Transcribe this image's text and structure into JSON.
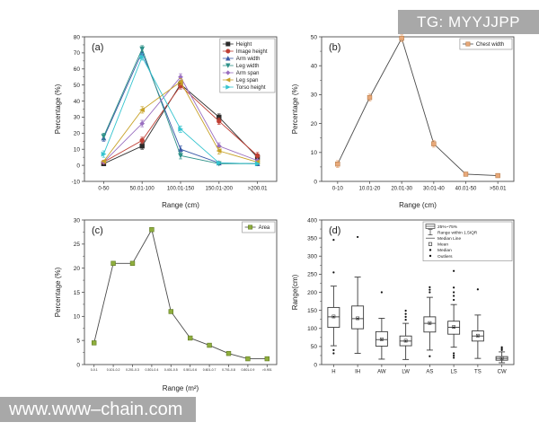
{
  "overlays": {
    "telegram_badge": "TG: MYYJJPP",
    "website_badge": "www.www–chain.com"
  },
  "colors": {
    "badge_bg": "#a8a8a8",
    "axis": "#4d4d4d",
    "text": "#222222"
  },
  "chart_data": [
    {
      "id": "a",
      "type": "line",
      "panel_label": "(a)",
      "xlabel": "Range (cm)",
      "ylabel": "Percentage (%)",
      "ylim": [
        -10,
        80
      ],
      "ytick": 10,
      "legend_position": "top-right",
      "categories": [
        "0-50",
        "50.01-100",
        "100.01-150",
        "150.01-200",
        ">200.01"
      ],
      "series": [
        {
          "name": "Height",
          "color": "#2b2b2b",
          "marker": "square",
          "err": 2,
          "values": [
            1,
            12,
            50.5,
            30,
            5
          ]
        },
        {
          "name": "Image height",
          "color": "#bf3f34",
          "marker": "circle",
          "err": 2,
          "values": [
            2,
            15.5,
            49.5,
            27.5,
            6
          ]
        },
        {
          "name": "Arm width",
          "color": "#3c5ba8",
          "marker": "triangle-up",
          "err": 2,
          "values": [
            17,
            70.5,
            10,
            1.5,
            1
          ]
        },
        {
          "name": "Leg width",
          "color": "#2e9188",
          "marker": "triangle-down",
          "err": 2,
          "values": [
            18,
            72.5,
            6,
            1,
            1
          ]
        },
        {
          "name": "Arm span",
          "color": "#9a6fc0",
          "marker": "diamond",
          "err": 2,
          "values": [
            2,
            26,
            55,
            12,
            3
          ]
        },
        {
          "name": "Leg span",
          "color": "#c8a227",
          "marker": "triangle-left",
          "err": 2,
          "values": [
            2.5,
            34.5,
            52,
            9,
            2
          ]
        },
        {
          "name": "Torso height",
          "color": "#35c4cf",
          "marker": "triangle-right",
          "err": 2,
          "values": [
            7,
            67.5,
            22.5,
            1.5,
            1
          ]
        }
      ]
    },
    {
      "id": "b",
      "type": "line",
      "panel_label": "(b)",
      "xlabel": "Range (cm)",
      "ylabel": "Percentage (%)",
      "ylim": [
        0,
        50
      ],
      "ytick": 10,
      "legend_position": "top-right",
      "categories": [
        "0-10",
        "10.01-20",
        "20.01-30",
        "30.01-40",
        "40.01-50",
        ">50.01"
      ],
      "series": [
        {
          "name": "Chest width",
          "color": "#e8a97a",
          "edge": "#b97a45",
          "line_color": "#4a4a4a",
          "marker": "square",
          "err": 1.2,
          "values": [
            6,
            29,
            49.5,
            13,
            2.5,
            2
          ]
        }
      ]
    },
    {
      "id": "c",
      "type": "line",
      "panel_label": "(c)",
      "xlabel": "Range (m²)",
      "ylabel": "Percentage (%)",
      "ylim": [
        0,
        30
      ],
      "ytick": 5,
      "legend_position": "top-right",
      "categories": [
        "0-0.1",
        "0.101-0.2",
        "0.201-0.3",
        "0.301-0.4",
        "0.401-0.5",
        "0.501-0.6",
        "0.601-0.7",
        "0.701-0.8",
        "0.801-0.9",
        ">0.901"
      ],
      "series": [
        {
          "name": "Area",
          "color": "#8fae3e",
          "edge": "#5f7a22",
          "line_color": "#4a4a4a",
          "marker": "square",
          "values": [
            4.5,
            21,
            21,
            28,
            11,
            5.5,
            4,
            2.3,
            1.2,
            1.2
          ]
        }
      ]
    },
    {
      "id": "d",
      "type": "box",
      "panel_label": "(d)",
      "xlabel": "",
      "ylabel": "Range(cm)",
      "ylim": [
        0,
        400
      ],
      "ytick": 50,
      "categories": [
        "H",
        "IH",
        "AW",
        "LW",
        "AS",
        "LS",
        "TS",
        "CW"
      ],
      "boxes": [
        {
          "cat": "H",
          "low": 52,
          "q1": 103,
          "median": 132,
          "mean": 133,
          "q3": 158,
          "high": 217,
          "outliers": [
            31,
            40,
            255,
            345
          ]
        },
        {
          "cat": "IH",
          "low": 31,
          "q1": 99,
          "median": 127,
          "mean": 128,
          "q3": 162,
          "high": 242,
          "outliers": [
            353
          ]
        },
        {
          "cat": "AW",
          "low": 15,
          "q1": 51,
          "median": 69,
          "mean": 70,
          "q3": 91,
          "high": 128,
          "outliers": [
            200
          ]
        },
        {
          "cat": "LW",
          "low": 14,
          "q1": 52,
          "median": 65,
          "mean": 66,
          "q3": 79,
          "high": 114,
          "outliers": [
            124,
            132,
            140,
            149
          ]
        },
        {
          "cat": "AS",
          "low": 40,
          "q1": 90,
          "median": 114,
          "mean": 115,
          "q3": 132,
          "high": 186,
          "outliers": [
            23,
            200,
            207,
            214,
            293
          ]
        },
        {
          "cat": "LS",
          "low": 48,
          "q1": 84,
          "median": 103,
          "mean": 104,
          "q3": 120,
          "high": 166,
          "outliers": [
            19,
            25,
            31,
            179,
            190,
            200,
            213,
            259
          ]
        },
        {
          "cat": "TS",
          "low": 17,
          "q1": 65,
          "median": 79,
          "mean": 80,
          "q3": 93,
          "high": 137,
          "outliers": [
            208
          ]
        },
        {
          "cat": "CW",
          "low": 5,
          "q1": 12,
          "median": 17,
          "mean": 18,
          "q3": 22,
          "high": 35,
          "outliers": [
            40,
            44,
            48
          ]
        }
      ],
      "legend_items": [
        {
          "glyph": "box",
          "label": "25%~75%"
        },
        {
          "glyph": "whisker",
          "label": "Range within 1.5IQR"
        },
        {
          "glyph": "line",
          "label": "Median Line"
        },
        {
          "glyph": "mean",
          "label": "Mean"
        },
        {
          "glyph": "dot",
          "label": "Median"
        },
        {
          "glyph": "dot",
          "label": "Outliers"
        }
      ]
    }
  ]
}
